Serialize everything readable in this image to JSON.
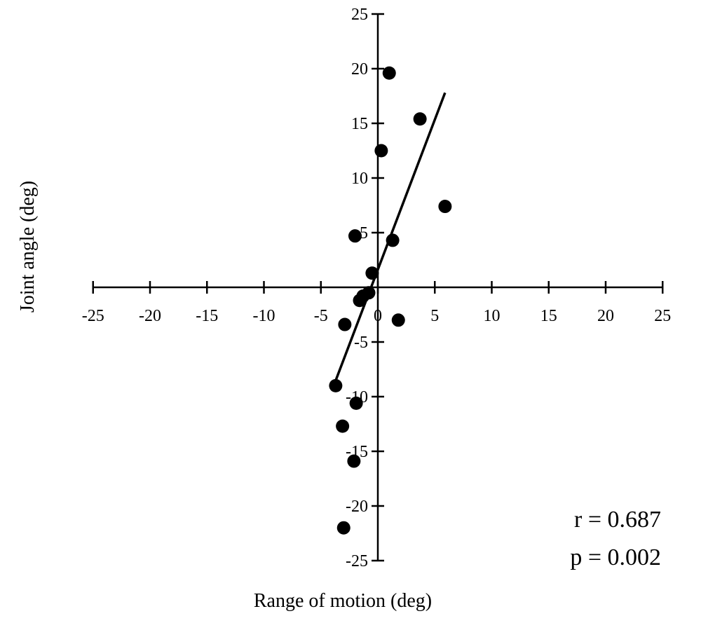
{
  "chart_data": {
    "type": "scatter",
    "title": "",
    "xlabel": "Range of motion (deg)",
    "ylabel": "Joint angle (deg)",
    "xlim": [
      -25,
      25
    ],
    "ylim": [
      -25,
      25
    ],
    "x_ticks": [
      -25,
      -20,
      -15,
      -10,
      -5,
      0,
      5,
      10,
      15,
      20,
      25
    ],
    "y_ticks": [
      -25,
      -20,
      -15,
      -10,
      -5,
      5,
      10,
      15,
      20,
      25
    ],
    "grid": false,
    "legend": "none",
    "series": [
      {
        "points": [
          {
            "x": 1.0,
            "y": 19.6
          },
          {
            "x": 3.7,
            "y": 15.4
          },
          {
            "x": 0.3,
            "y": 12.5
          },
          {
            "x": 5.9,
            "y": 7.4
          },
          {
            "x": -2.0,
            "y": 4.7
          },
          {
            "x": 1.3,
            "y": 4.3
          },
          {
            "x": -0.5,
            "y": 1.3
          },
          {
            "x": -0.8,
            "y": -0.5
          },
          {
            "x": -1.3,
            "y": -0.8
          },
          {
            "x": -1.6,
            "y": -1.2
          },
          {
            "x": 1.8,
            "y": -3.0
          },
          {
            "x": -2.9,
            "y": -3.4
          },
          {
            "x": -3.7,
            "y": -9.0
          },
          {
            "x": -1.9,
            "y": -10.6
          },
          {
            "x": -3.1,
            "y": -12.7
          },
          {
            "x": -2.1,
            "y": -15.9
          },
          {
            "x": -3.0,
            "y": -22.0
          }
        ]
      }
    ],
    "trendline": {
      "x1": -3.8,
      "y1": -8.8,
      "x2": 5.9,
      "y2": 17.8
    },
    "annotations": [
      {
        "text": "r = 0.687"
      },
      {
        "text": "p = 0.002"
      }
    ]
  }
}
